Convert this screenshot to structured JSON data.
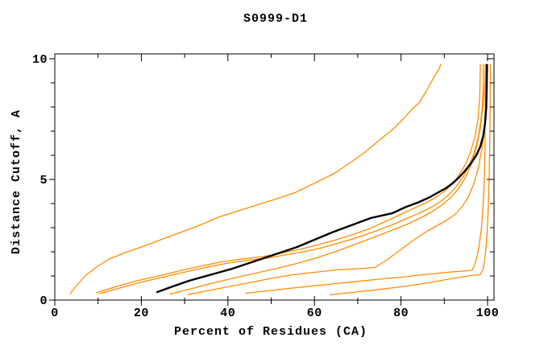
{
  "window": {
    "background": "#ffffff"
  },
  "chart": {
    "title": "S0999-D1",
    "xlabel": "Percent of Residues (CA)",
    "ylabel": "Distance Cutoff, A",
    "accent_color": "#ff8c00",
    "highlight_color": "#000000",
    "frame_color": "#000000"
  },
  "chart_data": {
    "type": "line",
    "title": "S0999-D1",
    "xlabel": "Percent of Residues (CA)",
    "ylabel": "Distance Cutoff, A",
    "xlim": [
      0,
      101.5
    ],
    "ylim": [
      0,
      10.2
    ],
    "x_major_ticks": [
      0,
      20,
      40,
      60,
      80,
      100
    ],
    "x_minor_ticks": [
      10,
      30,
      50,
      70,
      90
    ],
    "y_major_ticks": [
      0,
      5,
      10
    ],
    "y_minor_ticks": [
      1,
      2,
      3,
      4,
      6,
      7,
      8,
      9
    ],
    "grid": false,
    "legend_position": "none",
    "series": [
      {
        "name": "orange-model-1",
        "color": "#ff8c00",
        "width": 1.3,
        "points": [
          [
            3.5,
            0.25
          ],
          [
            5,
            0.6
          ],
          [
            7,
            1.0
          ],
          [
            9.5,
            1.35
          ],
          [
            12.5,
            1.7
          ],
          [
            16,
            1.95
          ],
          [
            20,
            2.2
          ],
          [
            24.5,
            2.5
          ],
          [
            29,
            2.8
          ],
          [
            33.5,
            3.1
          ],
          [
            38,
            3.45
          ],
          [
            42.5,
            3.7
          ],
          [
            46,
            3.9
          ],
          [
            50.5,
            4.15
          ],
          [
            55.5,
            4.45
          ],
          [
            59.5,
            4.8
          ],
          [
            63.5,
            5.15
          ],
          [
            65.5,
            5.35
          ],
          [
            67.5,
            5.6
          ],
          [
            69.5,
            5.85
          ],
          [
            71.5,
            6.1
          ],
          [
            73.5,
            6.4
          ],
          [
            75.5,
            6.7
          ],
          [
            78,
            7.05
          ],
          [
            80.5,
            7.5
          ],
          [
            82.5,
            7.9
          ],
          [
            84.3,
            8.2
          ],
          [
            86,
            8.7
          ],
          [
            87.5,
            9.2
          ],
          [
            88.7,
            9.55
          ],
          [
            89.3,
            9.78
          ]
        ]
      },
      {
        "name": "orange-model-2",
        "color": "#ff8c00",
        "width": 1.3,
        "points": [
          [
            9.5,
            0.3
          ],
          [
            14,
            0.55
          ],
          [
            19,
            0.8
          ],
          [
            24,
            1.0
          ],
          [
            29,
            1.22
          ],
          [
            34,
            1.42
          ],
          [
            39,
            1.6
          ],
          [
            44,
            1.72
          ],
          [
            48,
            1.8
          ],
          [
            52.5,
            1.95
          ],
          [
            57,
            2.12
          ],
          [
            61,
            2.3
          ],
          [
            65,
            2.5
          ],
          [
            69,
            2.72
          ],
          [
            73,
            2.98
          ],
          [
            77,
            3.3
          ],
          [
            80.5,
            3.6
          ],
          [
            83.5,
            3.85
          ],
          [
            86,
            4.05
          ],
          [
            88,
            4.25
          ],
          [
            90,
            4.5
          ],
          [
            91.8,
            4.8
          ],
          [
            93.3,
            5.15
          ],
          [
            94.8,
            5.6
          ],
          [
            96,
            6.1
          ],
          [
            97,
            6.7
          ],
          [
            97.8,
            7.5
          ],
          [
            98.2,
            8.4
          ],
          [
            98.35,
            9.78
          ]
        ]
      },
      {
        "name": "orange-model-3",
        "color": "#ff8c00",
        "width": 1.3,
        "points": [
          [
            10.2,
            0.26
          ],
          [
            15,
            0.5
          ],
          [
            20,
            0.74
          ],
          [
            25,
            0.95
          ],
          [
            30,
            1.16
          ],
          [
            35,
            1.36
          ],
          [
            40,
            1.53
          ],
          [
            45,
            1.66
          ],
          [
            49,
            1.74
          ],
          [
            53.5,
            1.88
          ],
          [
            58,
            2.02
          ],
          [
            62,
            2.18
          ],
          [
            66,
            2.38
          ],
          [
            70,
            2.6
          ],
          [
            74,
            2.85
          ],
          [
            78,
            3.12
          ],
          [
            81.5,
            3.4
          ],
          [
            84.5,
            3.62
          ],
          [
            87,
            3.85
          ],
          [
            89.3,
            4.1
          ],
          [
            91.3,
            4.4
          ],
          [
            93,
            4.75
          ],
          [
            94.5,
            5.15
          ],
          [
            95.8,
            5.6
          ],
          [
            97,
            6.15
          ],
          [
            98,
            6.9
          ],
          [
            98.7,
            7.8
          ],
          [
            99,
            8.8
          ],
          [
            99.05,
            9.78
          ]
        ]
      },
      {
        "name": "orange-model-4",
        "color": "#ff8c00",
        "width": 1.3,
        "points": [
          [
            26.5,
            0.24
          ],
          [
            31,
            0.45
          ],
          [
            36,
            0.68
          ],
          [
            41,
            0.9
          ],
          [
            46,
            1.1
          ],
          [
            51,
            1.3
          ],
          [
            56,
            1.52
          ],
          [
            61,
            1.78
          ],
          [
            66,
            2.08
          ],
          [
            70,
            2.35
          ],
          [
            74,
            2.62
          ],
          [
            78,
            2.9
          ],
          [
            81.5,
            3.15
          ],
          [
            85,
            3.45
          ],
          [
            87.5,
            3.7
          ],
          [
            89.5,
            3.95
          ],
          [
            91.5,
            4.25
          ],
          [
            93.2,
            4.6
          ],
          [
            94.8,
            5.05
          ],
          [
            96.2,
            5.6
          ],
          [
            97.4,
            6.3
          ],
          [
            98.3,
            7.1
          ],
          [
            99,
            8.1
          ],
          [
            99.4,
            9.0
          ],
          [
            99.5,
            9.78
          ]
        ]
      },
      {
        "name": "orange-model-5",
        "color": "#ff8c00",
        "width": 1.3,
        "points": [
          [
            30.7,
            0.22
          ],
          [
            35,
            0.38
          ],
          [
            40,
            0.55
          ],
          [
            45,
            0.72
          ],
          [
            50,
            0.9
          ],
          [
            55,
            1.05
          ],
          [
            60,
            1.15
          ],
          [
            65,
            1.25
          ],
          [
            70,
            1.3
          ],
          [
            74,
            1.35
          ],
          [
            77,
            1.7
          ],
          [
            80,
            2.1
          ],
          [
            83,
            2.5
          ],
          [
            86,
            2.85
          ],
          [
            88.5,
            3.1
          ],
          [
            90.5,
            3.3
          ],
          [
            92.5,
            3.55
          ],
          [
            94,
            3.85
          ],
          [
            95.5,
            4.25
          ],
          [
            96.8,
            4.8
          ],
          [
            97.9,
            5.5
          ],
          [
            98.8,
            6.4
          ],
          [
            99.5,
            7.5
          ],
          [
            99.9,
            8.6
          ],
          [
            100.05,
            9.78
          ]
        ]
      },
      {
        "name": "orange-model-6",
        "color": "#ff8c00",
        "width": 1.3,
        "points": [
          [
            44,
            0.28
          ],
          [
            50,
            0.4
          ],
          [
            56,
            0.52
          ],
          [
            62,
            0.63
          ],
          [
            68,
            0.74
          ],
          [
            74,
            0.85
          ],
          [
            80,
            0.95
          ],
          [
            85,
            1.05
          ],
          [
            89,
            1.12
          ],
          [
            92,
            1.17
          ],
          [
            94.5,
            1.2
          ],
          [
            96.5,
            1.25
          ],
          [
            97.3,
            1.6
          ],
          [
            98,
            2.2
          ],
          [
            98.6,
            3.0
          ],
          [
            99,
            4.0
          ],
          [
            99.25,
            5.0
          ],
          [
            99.4,
            6.2
          ],
          [
            99.45,
            7.6
          ],
          [
            99.5,
            8.7
          ],
          [
            99.5,
            9.78
          ]
        ]
      },
      {
        "name": "orange-model-7",
        "color": "#ff8c00",
        "width": 1.3,
        "points": [
          [
            63.5,
            0.22
          ],
          [
            69,
            0.32
          ],
          [
            75,
            0.44
          ],
          [
            80,
            0.55
          ],
          [
            85,
            0.68
          ],
          [
            89,
            0.8
          ],
          [
            92,
            0.9
          ],
          [
            94.5,
            0.97
          ],
          [
            96.5,
            1.02
          ],
          [
            98.3,
            1.05
          ],
          [
            99,
            1.3
          ],
          [
            99.5,
            1.9
          ],
          [
            99.9,
            2.8
          ],
          [
            100.2,
            4.0
          ],
          [
            100.4,
            5.2
          ],
          [
            100.5,
            6.5
          ],
          [
            100.6,
            8.0
          ],
          [
            100.65,
            9.78
          ]
        ]
      },
      {
        "name": "highlighted-model-black",
        "color": "#000000",
        "width": 2.4,
        "points": [
          [
            23.5,
            0.32
          ],
          [
            27,
            0.55
          ],
          [
            31,
            0.8
          ],
          [
            36,
            1.05
          ],
          [
            41,
            1.3
          ],
          [
            46,
            1.6
          ],
          [
            51,
            1.9
          ],
          [
            56,
            2.2
          ],
          [
            60,
            2.5
          ],
          [
            64,
            2.8
          ],
          [
            67,
            3.0
          ],
          [
            70,
            3.2
          ],
          [
            73,
            3.4
          ],
          [
            76,
            3.52
          ],
          [
            78,
            3.6
          ],
          [
            81,
            3.85
          ],
          [
            84,
            4.05
          ],
          [
            86.5,
            4.25
          ],
          [
            88.5,
            4.45
          ],
          [
            90.5,
            4.65
          ],
          [
            92,
            4.85
          ],
          [
            93.5,
            5.1
          ],
          [
            95,
            5.4
          ],
          [
            96.3,
            5.7
          ],
          [
            97.4,
            6.0
          ],
          [
            98.3,
            6.35
          ],
          [
            99,
            6.8
          ],
          [
            99.4,
            7.3
          ],
          [
            99.7,
            8.0
          ],
          [
            99.8,
            8.8
          ],
          [
            99.85,
            9.78
          ]
        ]
      }
    ]
  }
}
